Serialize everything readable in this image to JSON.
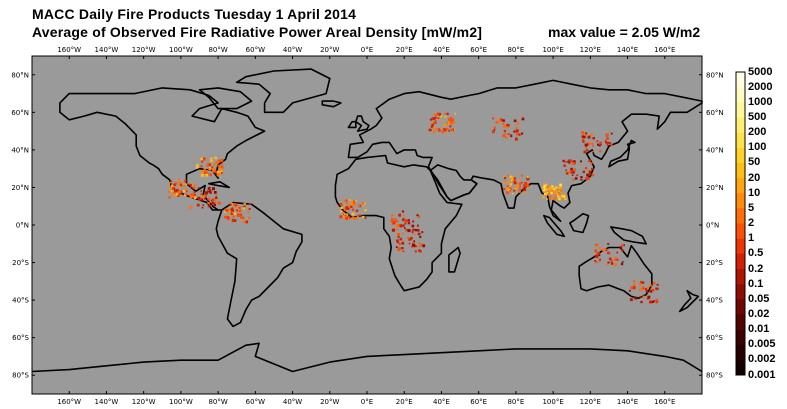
{
  "header": {
    "title": "MACC Daily Fire Products Tuesday 1 April 2014",
    "subtitle": "Average of Observed Fire Radiative Power Areal Density [mW/m2]",
    "max_value": "max value =  2.05 W/m2"
  },
  "map": {
    "ocean_color": "#9a9a9a",
    "land_outline_color": "#000000",
    "lon_ticks": [
      "160°W",
      "140°W",
      "120°W",
      "100°W",
      "80°W",
      "60°W",
      "40°W",
      "20°W",
      "0°E",
      "20°E",
      "40°E",
      "60°E",
      "80°E",
      "100°E",
      "120°E",
      "140°E",
      "160°E"
    ],
    "lat_ticks_left": [
      "80°N",
      "60°N",
      "40°N",
      "20°N",
      "0°N",
      "20°S",
      "40°S",
      "60°S",
      "80°S"
    ],
    "lat_ticks_right": [
      "80°N",
      "60°N",
      "40°N",
      "20°N",
      "0°N",
      "20°S",
      "40°S",
      "60°S",
      "80°S"
    ]
  },
  "colorbar": {
    "labels": [
      "5000",
      "2000",
      "1000",
      "500",
      "200",
      "100",
      "50",
      "20",
      "10",
      "5",
      "2",
      "1",
      "0.5",
      "0.2",
      "0.1",
      "0.05",
      "0.02",
      "0.01",
      "0.005",
      "0.002",
      "0.001"
    ],
    "colors": [
      "#fffde0",
      "#fffbc0",
      "#fff69a",
      "#ffee70",
      "#ffe24a",
      "#ffd22a",
      "#ffbe14",
      "#ffa510",
      "#ff8a0c",
      "#ff6c0a",
      "#ff4e08",
      "#ee3306",
      "#d22004",
      "#b01402",
      "#8e0c01",
      "#6e0701",
      "#520401",
      "#3a0201",
      "#260101",
      "#140000"
    ]
  },
  "fire_clusters": [
    {
      "region": "Mexico",
      "lon": -100,
      "lat": 20,
      "intensity": "high"
    },
    {
      "region": "USA Southeast",
      "lon": -85,
      "lat": 32,
      "intensity": "high"
    },
    {
      "region": "Central America",
      "lon": -88,
      "lat": 15,
      "intensity": "mid"
    },
    {
      "region": "Colombia/Venezuela",
      "lon": -70,
      "lat": 7,
      "intensity": "high"
    },
    {
      "region": "West Africa",
      "lon": -8,
      "lat": 9,
      "intensity": "high"
    },
    {
      "region": "Central Africa",
      "lon": 20,
      "lat": 3,
      "intensity": "mid"
    },
    {
      "region": "Southern Africa",
      "lon": 22,
      "lat": -8,
      "intensity": "mid"
    },
    {
      "region": "Eastern Europe",
      "lon": 40,
      "lat": 55,
      "intensity": "high"
    },
    {
      "region": "Kazakhstan/Russia",
      "lon": 75,
      "lat": 52,
      "intensity": "mid"
    },
    {
      "region": "India",
      "lon": 80,
      "lat": 22,
      "intensity": "high"
    },
    {
      "region": "Southeast Asia",
      "lon": 100,
      "lat": 18,
      "intensity": "very-high"
    },
    {
      "region": "China",
      "lon": 113,
      "lat": 30,
      "intensity": "mid"
    },
    {
      "region": "Northeast China",
      "lon": 123,
      "lat": 45,
      "intensity": "mid"
    },
    {
      "region": "Australia North",
      "lon": 130,
      "lat": -15,
      "intensity": "mid"
    },
    {
      "region": "Australia Southeast",
      "lon": 148,
      "lat": -35,
      "intensity": "mid"
    }
  ]
}
